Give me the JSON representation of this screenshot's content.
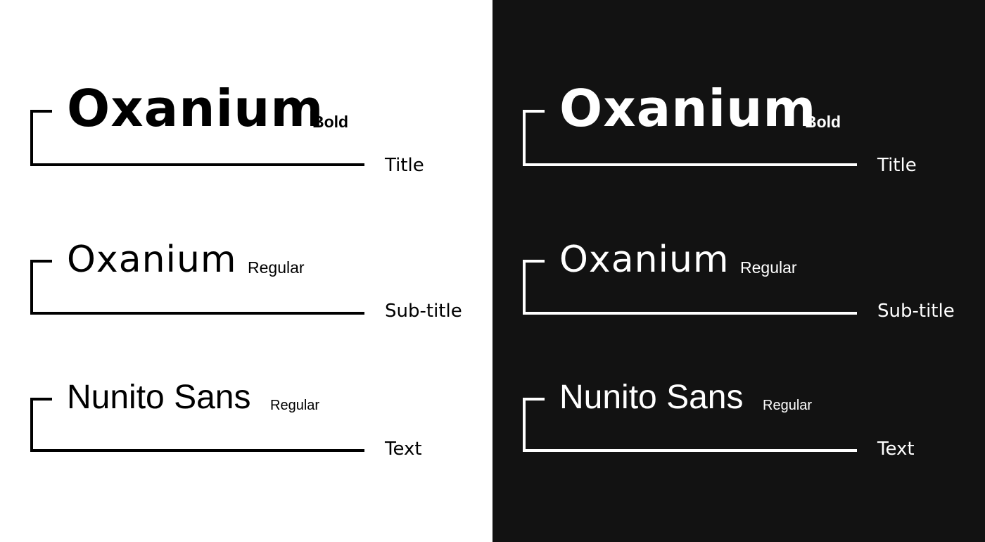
{
  "colors": {
    "light_bg": "#ffffff",
    "light_fg": "#000000",
    "dark_bg": "#121212",
    "dark_fg": "#ffffff"
  },
  "panels": [
    {
      "theme": "light",
      "rows": [
        {
          "font": "Oxanium",
          "weight": "Bold",
          "role": "Title"
        },
        {
          "font": "Oxanium",
          "weight": "Regular",
          "role": "Sub-title"
        },
        {
          "font": "Nunito Sans",
          "weight": "Regular",
          "role": "Text"
        }
      ]
    },
    {
      "theme": "dark",
      "rows": [
        {
          "font": "Oxanium",
          "weight": "Bold",
          "role": "Title"
        },
        {
          "font": "Oxanium",
          "weight": "Regular",
          "role": "Sub-title"
        },
        {
          "font": "Nunito Sans",
          "weight": "Regular",
          "role": "Text"
        }
      ]
    }
  ]
}
